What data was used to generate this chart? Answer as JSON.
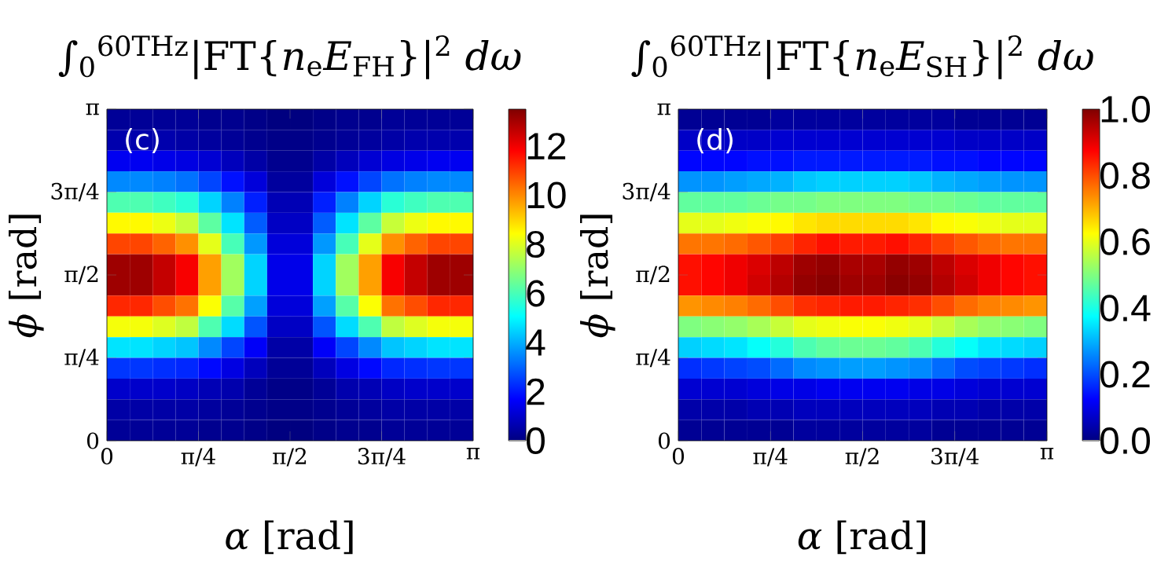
{
  "chart_data": [
    {
      "type": "heatmap",
      "title": "∫$_{0}$$^{60THz}$|FT{*n*$_{e}$*E*$_{FH}$}|$^{2}$ *dω*",
      "xlabel": "*α* [rad]",
      "ylabel": "*ϕ* [rad]",
      "annotations": [
        "(c)"
      ],
      "xlim": [
        0,
        3.1416
      ],
      "ylim": [
        0,
        3.1416
      ],
      "xticks": [
        0,
        {
          "value": 0.7854,
          "label": "π/4"
        },
        {
          "value": 1.5708,
          "label": "π/2"
        },
        {
          "value": 2.3562,
          "label": "3π/4"
        },
        {
          "value": 3.1416,
          "label": "π"
        }
      ],
      "yticks": [
        0,
        {
          "value": 0.7854,
          "label": "π/4"
        },
        {
          "value": 1.5708,
          "label": "π/2"
        },
        {
          "value": 2.3562,
          "label": "3π/4"
        },
        {
          "value": 3.1416,
          "label": "π"
        }
      ],
      "clim": [
        0,
        13.5
      ],
      "cticks": [
        0,
        2,
        4,
        6,
        8,
        10,
        12
      ],
      "cells": [
        [
          0.3,
          0.3,
          0.3,
          0.3,
          0.2,
          0.2,
          0.1,
          0.0,
          0.0,
          0.1,
          0.2,
          0.2,
          0.3,
          0.3,
          0.3,
          0.3
        ],
        [
          0.6,
          0.6,
          0.6,
          0.5,
          0.4,
          0.3,
          0.2,
          0.1,
          0.1,
          0.2,
          0.3,
          0.4,
          0.5,
          0.6,
          0.6,
          0.6
        ],
        [
          1.5,
          1.5,
          1.4,
          1.3,
          1.1,
          0.8,
          0.5,
          0.2,
          0.2,
          0.5,
          0.8,
          1.1,
          1.3,
          1.4,
          1.5,
          1.5
        ],
        [
          3.5,
          3.5,
          3.4,
          3.2,
          2.6,
          1.9,
          1.2,
          0.4,
          0.4,
          1.2,
          1.9,
          2.6,
          3.2,
          3.4,
          3.5,
          3.5
        ],
        [
          6.1,
          6.1,
          5.9,
          5.6,
          4.5,
          3.4,
          2.1,
          0.7,
          0.7,
          2.1,
          3.4,
          4.5,
          5.6,
          5.9,
          6.1,
          6.1
        ],
        [
          8.5,
          8.5,
          8.2,
          7.7,
          6.3,
          4.7,
          2.9,
          0.9,
          0.9,
          2.9,
          4.7,
          6.3,
          7.7,
          8.2,
          8.5,
          8.5
        ],
        [
          10.9,
          10.9,
          10.5,
          9.9,
          8.1,
          6.0,
          3.7,
          1.2,
          1.2,
          3.7,
          6.0,
          8.1,
          9.9,
          10.5,
          10.9,
          10.9
        ],
        [
          13.1,
          13.1,
          12.6,
          11.9,
          9.7,
          7.2,
          4.5,
          1.4,
          1.4,
          4.5,
          7.2,
          9.7,
          11.9,
          12.6,
          13.1,
          13.1
        ],
        [
          13.1,
          13.1,
          12.6,
          11.9,
          9.7,
          7.2,
          4.5,
          1.4,
          1.4,
          4.5,
          7.2,
          9.7,
          11.9,
          12.6,
          13.1,
          13.1
        ],
        [
          11.3,
          11.3,
          10.8,
          10.3,
          8.4,
          6.2,
          3.8,
          1.2,
          1.2,
          3.8,
          6.2,
          8.4,
          10.3,
          10.8,
          11.3,
          11.3
        ],
        [
          8.3,
          8.3,
          8.0,
          7.6,
          6.1,
          4.6,
          2.8,
          0.9,
          0.9,
          2.8,
          4.6,
          6.1,
          7.6,
          8.0,
          8.3,
          8.3
        ],
        [
          4.7,
          4.7,
          4.5,
          4.3,
          3.5,
          2.6,
          1.6,
          0.5,
          0.5,
          1.6,
          2.6,
          3.5,
          4.3,
          4.5,
          4.7,
          4.7
        ],
        [
          2.4,
          2.4,
          2.3,
          2.2,
          1.8,
          1.3,
          0.8,
          0.3,
          0.3,
          0.8,
          1.3,
          1.8,
          2.2,
          2.3,
          2.4,
          2.4
        ],
        [
          1.0,
          1.0,
          1.0,
          0.9,
          0.7,
          0.6,
          0.3,
          0.1,
          0.1,
          0.3,
          0.6,
          0.7,
          0.9,
          1.0,
          1.0,
          1.0
        ],
        [
          0.5,
          0.5,
          0.5,
          0.5,
          0.4,
          0.3,
          0.2,
          0.1,
          0.1,
          0.2,
          0.3,
          0.4,
          0.5,
          0.5,
          0.5,
          0.5
        ],
        [
          0.3,
          0.3,
          0.3,
          0.3,
          0.2,
          0.2,
          0.1,
          0.0,
          0.0,
          0.1,
          0.2,
          0.2,
          0.3,
          0.3,
          0.3,
          0.3
        ]
      ]
    },
    {
      "type": "heatmap",
      "title": "∫$_{0}$$^{60THz}$|FT{*n*$_{e}$*E*$_{SH}$}|$^{2}$ *dω*",
      "xlabel": "*α* [rad]",
      "ylabel": "*ϕ* [rad]",
      "annotations": [
        "(d)"
      ],
      "xlim": [
        0,
        3.1416
      ],
      "ylim": [
        0,
        3.1416
      ],
      "xticks": [
        0,
        {
          "value": 0.7854,
          "label": "π/4"
        },
        {
          "value": 1.5708,
          "label": "π/2"
        },
        {
          "value": 2.3562,
          "label": "3π/4"
        },
        {
          "value": 3.1416,
          "label": "π"
        }
      ],
      "yticks": [
        0,
        {
          "value": 0.7854,
          "label": "π/4"
        },
        {
          "value": 1.5708,
          "label": "π/2"
        },
        {
          "value": 2.3562,
          "label": "3π/4"
        },
        {
          "value": 3.1416,
          "label": "π"
        }
      ],
      "clim": [
        0,
        1
      ],
      "cticks": [
        {
          "value": 0,
          "label": "0.0"
        },
        {
          "value": 0.2,
          "label": "0.2"
        },
        {
          "value": 0.4,
          "label": "0.4"
        },
        {
          "value": 0.6,
          "label": "0.6"
        },
        {
          "value": 0.8,
          "label": "0.8"
        },
        {
          "value": 1,
          "label": "1.0"
        }
      ],
      "cells": [
        [
          0.02,
          0.02,
          0.02,
          0.02,
          0.03,
          0.03,
          0.03,
          0.03,
          0.03,
          0.03,
          0.03,
          0.03,
          0.02,
          0.02,
          0.02,
          0.02
        ],
        [
          0.07,
          0.07,
          0.07,
          0.07,
          0.08,
          0.08,
          0.08,
          0.08,
          0.08,
          0.08,
          0.08,
          0.08,
          0.07,
          0.07,
          0.07,
          0.07
        ],
        [
          0.13,
          0.13,
          0.13,
          0.14,
          0.14,
          0.15,
          0.15,
          0.15,
          0.15,
          0.15,
          0.15,
          0.14,
          0.14,
          0.13,
          0.13,
          0.13
        ],
        [
          0.27,
          0.27,
          0.28,
          0.29,
          0.3,
          0.32,
          0.33,
          0.33,
          0.33,
          0.33,
          0.32,
          0.3,
          0.29,
          0.28,
          0.27,
          0.27
        ],
        [
          0.47,
          0.47,
          0.47,
          0.48,
          0.49,
          0.49,
          0.5,
          0.5,
          0.5,
          0.5,
          0.49,
          0.49,
          0.48,
          0.47,
          0.47,
          0.47
        ],
        [
          0.6,
          0.6,
          0.61,
          0.62,
          0.63,
          0.65,
          0.66,
          0.66,
          0.66,
          0.66,
          0.65,
          0.63,
          0.62,
          0.61,
          0.6,
          0.6
        ],
        [
          0.76,
          0.76,
          0.77,
          0.79,
          0.81,
          0.84,
          0.86,
          0.85,
          0.85,
          0.86,
          0.84,
          0.81,
          0.79,
          0.77,
          0.76,
          0.76
        ],
        [
          0.86,
          0.87,
          0.89,
          0.91,
          0.94,
          0.97,
          0.98,
          0.96,
          0.96,
          0.98,
          0.97,
          0.94,
          0.91,
          0.89,
          0.87,
          0.86
        ],
        [
          0.86,
          0.87,
          0.89,
          0.92,
          0.95,
          0.98,
          0.99,
          0.97,
          0.97,
          0.99,
          0.98,
          0.95,
          0.92,
          0.89,
          0.87,
          0.86
        ],
        [
          0.73,
          0.74,
          0.75,
          0.77,
          0.8,
          0.83,
          0.84,
          0.85,
          0.85,
          0.84,
          0.83,
          0.8,
          0.77,
          0.75,
          0.74,
          0.73
        ],
        [
          0.5,
          0.51,
          0.52,
          0.54,
          0.57,
          0.6,
          0.61,
          0.62,
          0.62,
          0.61,
          0.6,
          0.57,
          0.54,
          0.52,
          0.51,
          0.5
        ],
        [
          0.33,
          0.34,
          0.35,
          0.38,
          0.41,
          0.45,
          0.47,
          0.48,
          0.48,
          0.47,
          0.45,
          0.41,
          0.38,
          0.35,
          0.34,
          0.33
        ],
        [
          0.17,
          0.18,
          0.19,
          0.2,
          0.23,
          0.26,
          0.27,
          0.28,
          0.28,
          0.27,
          0.26,
          0.23,
          0.2,
          0.19,
          0.18,
          0.17
        ],
        [
          0.08,
          0.08,
          0.08,
          0.09,
          0.1,
          0.1,
          0.11,
          0.11,
          0.11,
          0.11,
          0.1,
          0.1,
          0.09,
          0.08,
          0.08,
          0.08
        ],
        [
          0.04,
          0.04,
          0.04,
          0.05,
          0.05,
          0.06,
          0.06,
          0.06,
          0.06,
          0.06,
          0.06,
          0.05,
          0.05,
          0.04,
          0.04,
          0.04
        ],
        [
          0.02,
          0.02,
          0.02,
          0.02,
          0.02,
          0.03,
          0.03,
          0.03,
          0.03,
          0.03,
          0.03,
          0.02,
          0.02,
          0.02,
          0.02,
          0.02
        ]
      ]
    }
  ]
}
